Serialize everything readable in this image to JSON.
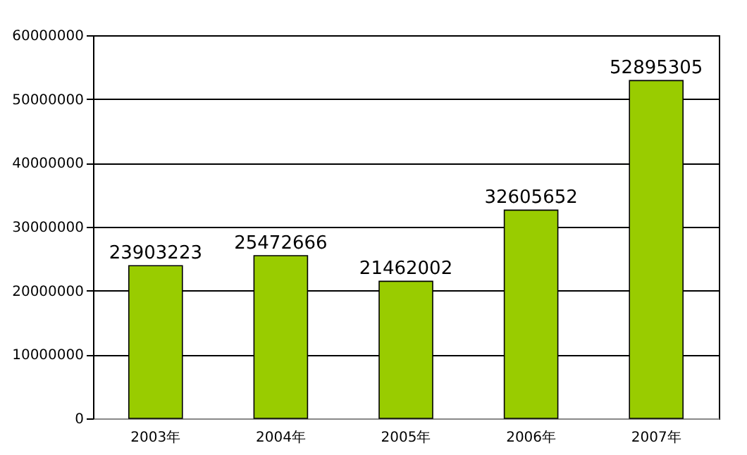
{
  "chart_data": {
    "type": "bar",
    "categories": [
      "2003年",
      "2004年",
      "2005年",
      "2006年",
      "2007年"
    ],
    "values": [
      23903223,
      25472666,
      21462002,
      32605652,
      52895305
    ],
    "color": "#99cc00",
    "ylim": [
      0,
      60000000
    ],
    "yticks": [
      0,
      10000000,
      20000000,
      30000000,
      40000000,
      50000000,
      60000000
    ],
    "grid": "y",
    "data_labels": true
  }
}
